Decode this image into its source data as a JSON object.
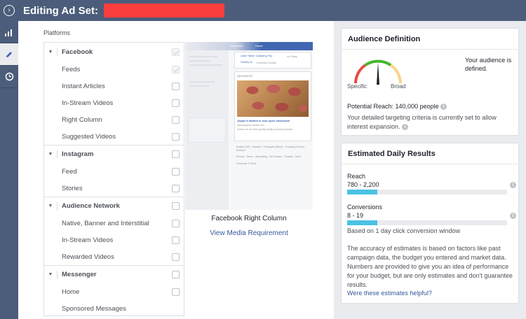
{
  "header": {
    "title": "Editing Ad Set:",
    "icon": "chevron-right-circle-icon"
  },
  "leftnav": {
    "items": [
      "bar-chart-icon",
      "pencil-icon",
      "clock-icon"
    ]
  },
  "platforms": {
    "title": "Platforms",
    "groups": [
      {
        "label": "Facebook",
        "items": [
          "Feeds",
          "Instant Articles",
          "In-Stream Videos",
          "Right Column",
          "Suggested Videos"
        ]
      },
      {
        "label": "Instagram",
        "items": [
          "Feed",
          "Stories"
        ]
      },
      {
        "label": "Audience Network",
        "items": [
          "Native, Banner and Interstitial",
          "In-Stream Videos",
          "Rewarded Videos"
        ]
      },
      {
        "label": "Messenger",
        "items": [
          "Home",
          "Sponsored Messages"
        ]
      }
    ]
  },
  "preview": {
    "profile_name": "Samantha",
    "home": "Home",
    "event_title": "Lake Tahoe Camping Trip",
    "event_day": "on Friday",
    "birthday_name": "Shirley Ai",
    "birthday_text": "'s birthday is today",
    "sponsored": "Sponsored",
    "ad_title": "Jasper's Market is now open downtown",
    "ad_url": "www.jaspers-market.com",
    "ad_desc": "Check out our best quality locally sourced products.",
    "languages": "English (US) · Español · Português (Brasil) · Français (France) · Deutsch",
    "footer": "Privacy · Terms · Advertising · Ad Choices · Cookies · More",
    "copyright": "Facebook © 2016",
    "caption": "Facebook Right Column",
    "link": "View Media Requirement"
  },
  "audience": {
    "title": "Audience Definition",
    "status": "Your audience is defined.",
    "gauge_left": "Specific",
    "gauge_right": "Broad",
    "reach_label": "Potential Reach: 140,000 people",
    "note": "Your detailed targeting criteria is currently set to allow interest expansion."
  },
  "estimates": {
    "title": "Estimated Daily Results",
    "reach_label": "Reach",
    "reach_value": "780 - 2,200",
    "reach_fill": 0.19,
    "conv_label": "Conversions",
    "conv_value": "8 - 19",
    "conv_fill": 0.19,
    "basis": "Based on 1 day click conversion window",
    "disclaimer": "The accuracy of estimates is based on factors like past campaign data, the budget you entered and market data. Numbers are provided to give you an idea of performance for your budget, but are only estimates and don't guarantee results.",
    "feedback": "Were these estimates helpful?"
  },
  "colors": {
    "header": "#4b5d7a",
    "link": "#365899",
    "bar": "#4bc2e3",
    "redaction": "#fa3e3e"
  }
}
